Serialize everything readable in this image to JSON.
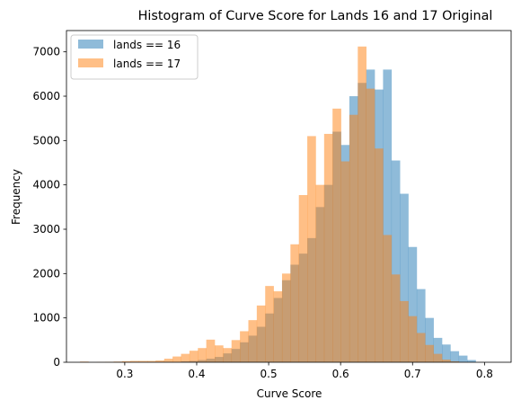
{
  "chart_data": {
    "type": "bar",
    "title": "Histogram of Curve Score for Lands 16 and 17 Original",
    "xlabel": "Curve Score",
    "ylabel": "Frequency",
    "xlim": [
      0.219,
      0.837
    ],
    "ylim": [
      0,
      7480
    ],
    "xticks": [
      0.3,
      0.4,
      0.5,
      0.6,
      0.7,
      0.8
    ],
    "yticks": [
      0,
      1000,
      2000,
      3000,
      4000,
      5000,
      6000,
      7000
    ],
    "grid": false,
    "legend_position": "upper left",
    "bin_width": 0.0117,
    "series": [
      {
        "name": "lands == 16",
        "color": "#1f77b4",
        "alpha": 0.5,
        "bins_start": 0.2495,
        "values": [
          0,
          0,
          0,
          5,
          0,
          0,
          0,
          3,
          5,
          8,
          10,
          20,
          30,
          50,
          80,
          120,
          200,
          300,
          450,
          600,
          800,
          1100,
          1450,
          1850,
          2200,
          2450,
          2800,
          3500,
          4000,
          5200,
          4900,
          6000,
          6300,
          6600,
          6150,
          6600,
          4550,
          3800,
          2600,
          1650,
          1000,
          550,
          400,
          250,
          150,
          50
        ]
      },
      {
        "name": "lands == 17",
        "color": "#ff7f0e",
        "alpha": 0.5,
        "bins_start": 0.2378,
        "values": [
          15,
          0,
          5,
          10,
          15,
          25,
          30,
          30,
          30,
          40,
          80,
          130,
          190,
          260,
          320,
          510,
          380,
          320,
          500,
          700,
          950,
          1280,
          1720,
          1600,
          2000,
          2660,
          3770,
          5100,
          4000,
          5150,
          5720,
          4530,
          5580,
          7120,
          6170,
          4820,
          2870,
          1980,
          1380,
          1040,
          660,
          390,
          190,
          60,
          20,
          5
        ]
      }
    ]
  }
}
